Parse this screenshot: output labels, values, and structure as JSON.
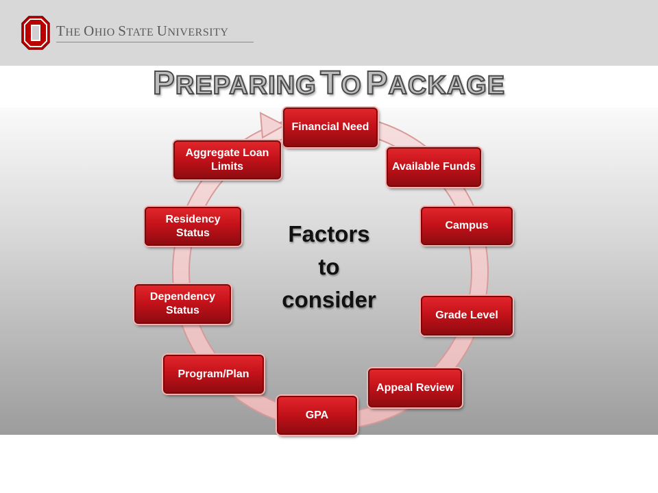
{
  "header": {
    "brand_line": "The Ohio State University"
  },
  "title": "Preparing to Package",
  "center_label": [
    "Factors",
    "to",
    "consider"
  ],
  "cycle": {
    "nodes": [
      "Financial Need",
      "Available Funds",
      "Campus",
      "Grade Level",
      "Appeal Review",
      "GPA",
      "Program/Plan",
      "Dependency Status",
      "Residency Status",
      "Aggregate Loan Limits"
    ]
  },
  "colors": {
    "scarlet": "#c5121a",
    "gray": "#d8d8d8"
  }
}
